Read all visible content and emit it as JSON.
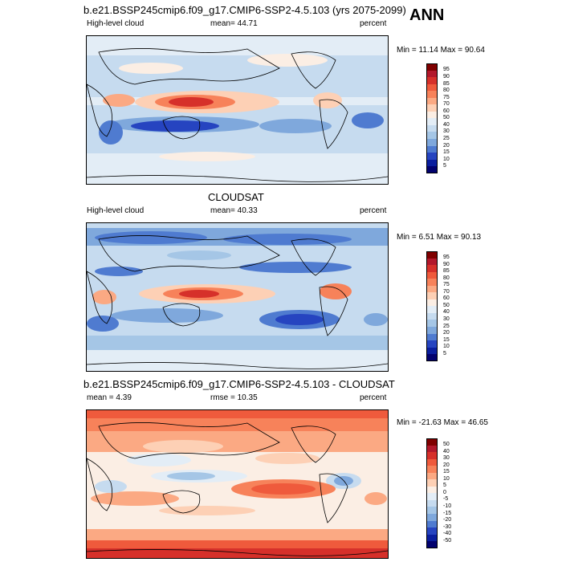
{
  "season": "ANN",
  "chart_data": [
    {
      "type": "heatmap",
      "title": "b.e21.BSSP245cmip6.f09_g17.CMIP6-SSP2-4.5.103 (yrs 2075-2099)",
      "left_label": "High-level cloud",
      "center_label": "mean=  44.71",
      "right_label": "percent",
      "minmax": "Min =  11.14 Max =  90.64",
      "mean": 44.71,
      "min": 11.14,
      "max": 90.64,
      "colorbar_ticks": [
        "95",
        "90",
        "85",
        "80",
        "75",
        "70",
        "60",
        "50",
        "40",
        "30",
        "25",
        "20",
        "15",
        "10",
        "5"
      ],
      "colorbar_colors": [
        "#7f0000",
        "#b2182b",
        "#d6302a",
        "#ef5a3c",
        "#f7825a",
        "#fba983",
        "#fdd0b5",
        "#fbeee4",
        "#e3edf6",
        "#c6dbef",
        "#a5c6e6",
        "#7fa8dc",
        "#4f7bd0",
        "#2644c0",
        "#0a1e9e",
        "#02016e"
      ]
    },
    {
      "type": "heatmap",
      "title": "CLOUDSAT",
      "left_label": "High-level cloud",
      "center_label": "mean=  40.33",
      "right_label": "percent",
      "minmax": "Min =   6.51 Max =  90.13",
      "mean": 40.33,
      "min": 6.51,
      "max": 90.13,
      "colorbar_ticks": [
        "95",
        "90",
        "85",
        "80",
        "75",
        "70",
        "60",
        "50",
        "40",
        "30",
        "25",
        "20",
        "15",
        "10",
        "5"
      ],
      "colorbar_colors": [
        "#7f0000",
        "#b2182b",
        "#d6302a",
        "#ef5a3c",
        "#f7825a",
        "#fba983",
        "#fdd0b5",
        "#fbeee4",
        "#e3edf6",
        "#c6dbef",
        "#a5c6e6",
        "#7fa8dc",
        "#4f7bd0",
        "#2644c0",
        "#0a1e9e",
        "#02016e"
      ]
    },
    {
      "type": "heatmap",
      "title": "b.e21.BSSP245cmip6.f09_g17.CMIP6-SSP2-4.5.103 - CLOUDSAT",
      "left_label": "mean =   4.39",
      "center_label": "rmse =  10.35",
      "right_label": "percent",
      "minmax": "Min = -21.63 Max =  46.65",
      "mean": 4.39,
      "rmse": 10.35,
      "min": -21.63,
      "max": 46.65,
      "colorbar_ticks": [
        "50",
        "40",
        "30",
        "20",
        "15",
        "10",
        "5",
        "0",
        "-5",
        "-10",
        "-15",
        "-20",
        "-30",
        "-40",
        "-50"
      ],
      "colorbar_colors": [
        "#7f0000",
        "#b2182b",
        "#d6302a",
        "#ef5a3c",
        "#f7825a",
        "#fba983",
        "#fdd0b5",
        "#fbeee4",
        "#e3edf6",
        "#c6dbef",
        "#a5c6e6",
        "#7fa8dc",
        "#4f7bd0",
        "#2644c0",
        "#0a1e9e",
        "#02016e"
      ]
    }
  ]
}
